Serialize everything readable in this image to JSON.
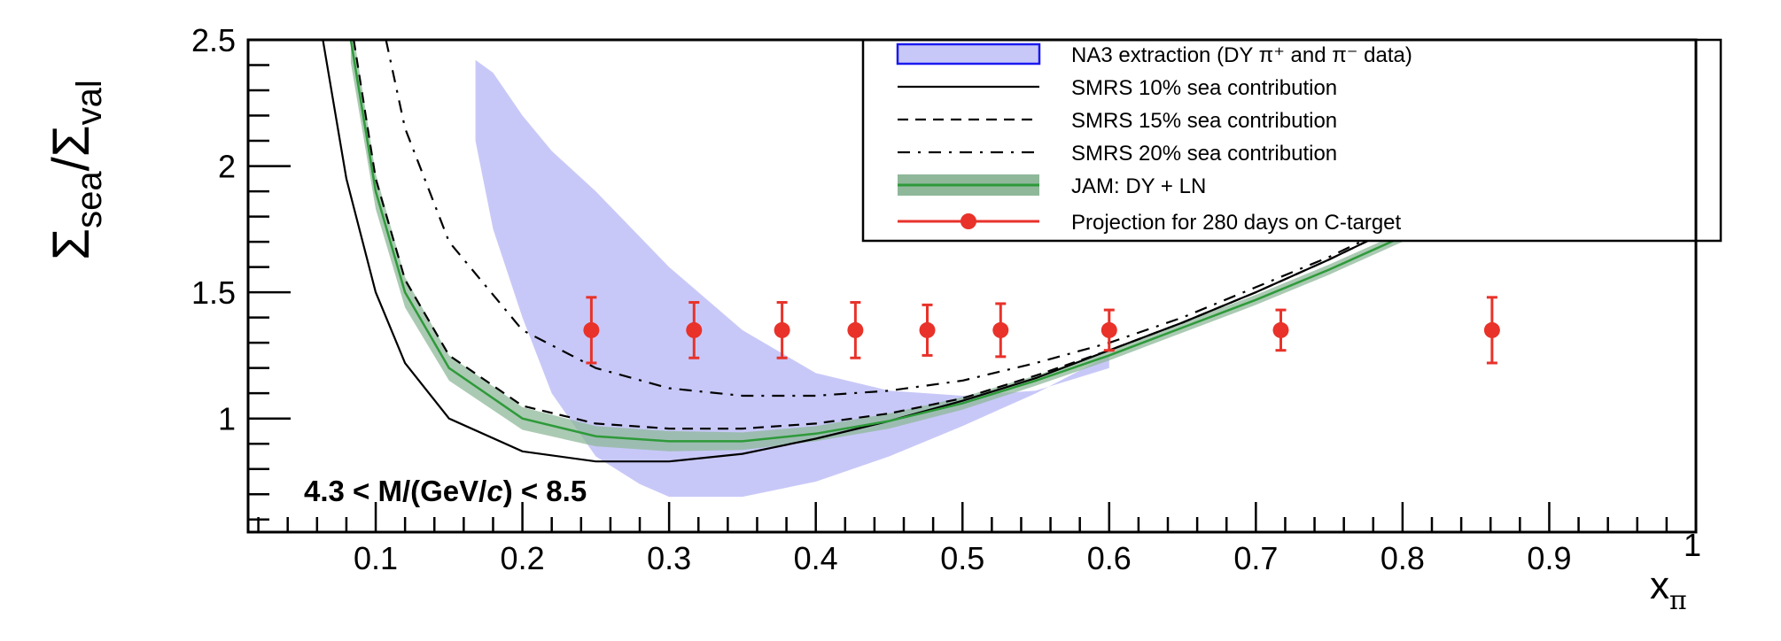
{
  "chart_data": {
    "type": "line",
    "title": "",
    "xlabel": "x",
    "xlabel_sub": "π",
    "ylabel_num": "Σ",
    "ylabel_num_sub": "sea",
    "ylabel_sep": "/",
    "ylabel_den": "Σ",
    "ylabel_den_sub": "val",
    "xlim": [
      0.013,
      1.0
    ],
    "ylim": [
      0.55,
      2.5
    ],
    "x_ticks": [
      0.1,
      0.2,
      0.3,
      0.4,
      0.5,
      0.6,
      0.7,
      0.8,
      0.9,
      1
    ],
    "x_tick_labels": [
      "0.1",
      "0.2",
      "0.3",
      "0.4",
      "0.5",
      "0.6",
      "0.7",
      "0.8",
      "0.9",
      "1"
    ],
    "y_ticks": [
      1,
      1.5,
      2,
      2.5
    ],
    "y_tick_labels": [
      "1",
      "1.5",
      "2",
      "2.5"
    ],
    "grid": false,
    "legend_placement": "top-right",
    "annotation": {
      "pre": "4.3 < M/(GeV/",
      "italic": "c",
      "post": ") < 8.5"
    },
    "colors": {
      "na3_fill": "#c8c8f8",
      "na3_border": "#1a1af0",
      "jam_band": "#8fb89a",
      "jam_line": "#2e9a3a",
      "projection": "#e8322a",
      "smrs": "#000000"
    },
    "legend": [
      {
        "key": "na3",
        "label": "NA3 extraction (DY π⁺ and π⁻ data)"
      },
      {
        "key": "smrs10",
        "label": "SMRS 10% sea contribution"
      },
      {
        "key": "smrs15",
        "label": "SMRS 15% sea contribution"
      },
      {
        "key": "smrs20",
        "label": "SMRS 20% sea contribution"
      },
      {
        "key": "jam",
        "label": "JAM: DY + LN"
      },
      {
        "key": "projection",
        "label": "Projection for 280 days on C-target"
      }
    ],
    "series": [
      {
        "key": "smrs10",
        "name": "SMRS 10% sea contribution",
        "style": "solid",
        "x": [
          0.064,
          0.08,
          0.1,
          0.12,
          0.15,
          0.2,
          0.25,
          0.3,
          0.35,
          0.4,
          0.45,
          0.5,
          0.55,
          0.6,
          0.65,
          0.7,
          0.75,
          0.8,
          0.9,
          1.0
        ],
        "y": [
          2.5,
          1.95,
          1.5,
          1.22,
          1.0,
          0.87,
          0.83,
          0.83,
          0.86,
          0.92,
          0.99,
          1.07,
          1.16,
          1.27,
          1.38,
          1.5,
          1.63,
          1.77,
          2.05,
          2.35
        ]
      },
      {
        "key": "smrs15",
        "name": "SMRS 15% sea contribution",
        "style": "dashed",
        "x": [
          0.085,
          0.1,
          0.12,
          0.15,
          0.2,
          0.25,
          0.3,
          0.35,
          0.4,
          0.45,
          0.5,
          0.55,
          0.6,
          0.65,
          0.7,
          0.75,
          0.8,
          0.9,
          1.0
        ],
        "y": [
          2.5,
          1.95,
          1.55,
          1.25,
          1.05,
          0.98,
          0.96,
          0.96,
          0.98,
          1.02,
          1.08,
          1.17,
          1.27,
          1.38,
          1.5,
          1.63,
          1.77,
          2.07,
          2.4
        ]
      },
      {
        "key": "smrs20",
        "name": "SMRS 20% sea contribution",
        "style": "dashdot",
        "x": [
          0.107,
          0.12,
          0.15,
          0.2,
          0.25,
          0.3,
          0.35,
          0.4,
          0.45,
          0.5,
          0.55,
          0.6,
          0.65,
          0.7,
          0.75,
          0.8,
          0.9,
          1.0
        ],
        "y": [
          2.5,
          2.15,
          1.7,
          1.35,
          1.2,
          1.12,
          1.09,
          1.09,
          1.11,
          1.15,
          1.22,
          1.3,
          1.4,
          1.52,
          1.64,
          1.78,
          2.08,
          2.4
        ]
      },
      {
        "key": "jam",
        "name": "JAM: DY + LN",
        "style": "band",
        "x": [
          0.083,
          0.1,
          0.12,
          0.15,
          0.2,
          0.25,
          0.3,
          0.35,
          0.4,
          0.45,
          0.5,
          0.55,
          0.6,
          0.65,
          0.7,
          0.75,
          0.8,
          0.9,
          1.0
        ],
        "y": [
          2.5,
          1.9,
          1.5,
          1.2,
          1.0,
          0.93,
          0.91,
          0.91,
          0.94,
          0.99,
          1.06,
          1.15,
          1.25,
          1.36,
          1.47,
          1.59,
          1.72,
          2.0,
          2.3
        ],
        "y_err": [
          0.09,
          0.07,
          0.06,
          0.05,
          0.045,
          0.04,
          0.04,
          0.035,
          0.03,
          0.03,
          0.025,
          0.02,
          0.02,
          0.02,
          0.02,
          0.02,
          0.02,
          0.02,
          0.02
        ]
      },
      {
        "key": "na3",
        "name": "NA3 extraction (DY π⁺ and π⁻ data)",
        "style": "fill",
        "x": [
          0.168,
          0.18,
          0.2,
          0.22,
          0.25,
          0.28,
          0.3,
          0.35,
          0.4,
          0.45,
          0.5,
          0.55,
          0.6
        ],
        "y_upper": [
          2.42,
          2.37,
          2.2,
          2.06,
          1.9,
          1.72,
          1.6,
          1.35,
          1.18,
          1.11,
          1.09,
          1.11,
          1.2
        ],
        "y_lower": [
          2.1,
          1.75,
          1.4,
          1.1,
          0.85,
          0.74,
          0.69,
          0.69,
          0.75,
          0.85,
          0.97,
          1.1,
          1.25
        ]
      },
      {
        "key": "projection",
        "name": "Projection for 280 days on C-target",
        "style": "points",
        "x": [
          0.247,
          0.317,
          0.377,
          0.427,
          0.476,
          0.526,
          0.6,
          0.717,
          0.861
        ],
        "y": [
          1.35,
          1.35,
          1.35,
          1.35,
          1.35,
          1.35,
          1.35,
          1.35,
          1.35
        ],
        "y_err": [
          0.13,
          0.11,
          0.11,
          0.11,
          0.1,
          0.105,
          0.08,
          0.08,
          0.13
        ]
      }
    ]
  }
}
